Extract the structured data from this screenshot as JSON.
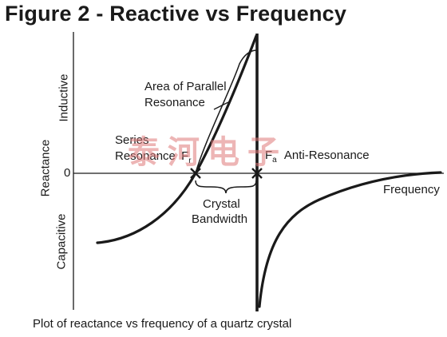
{
  "figure": {
    "title": "Figure 2 - Reactive vs Frequency",
    "caption": "Plot of reactance vs frequency of a quartz crystal"
  },
  "axes": {
    "y_label": "Reactance",
    "y_upper_label": "Inductive",
    "y_lower_label": "Capacitive",
    "y_zero_label": "0",
    "x_label": "Frequency"
  },
  "annotations": {
    "parallel_line1": "Area of Parallel",
    "parallel_line2": "Resonance",
    "series_line1": "Series",
    "series_line2": "Resonance",
    "fr_main": "F",
    "fr_sub": "r",
    "fa_main": "F",
    "fa_sub": "a",
    "anti_resonance": "Anti-Resonance",
    "bandwidth_line1": "Crystal",
    "bandwidth_line2": "Bandwidth"
  },
  "watermark": {
    "text": "泰河电子"
  },
  "colors": {
    "ink": "#1a1a1a",
    "watermark": "#e07a7a"
  }
}
